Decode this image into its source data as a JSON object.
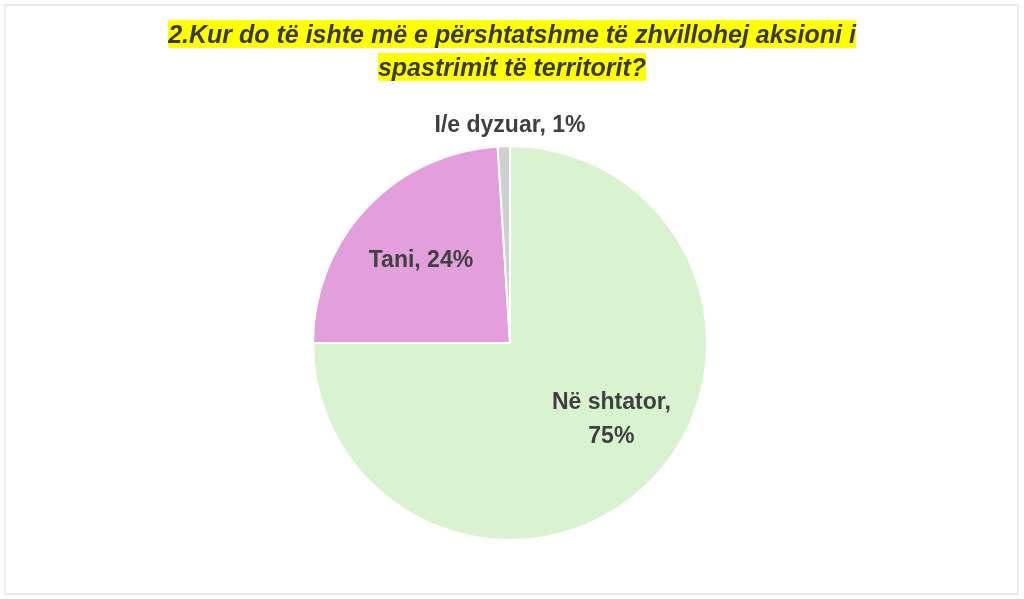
{
  "chart_data": {
    "type": "pie",
    "title": "2.Kur do të ishte më e përshtatshme të zhvillohej aksioni i spastrimit të territorit?",
    "categories": [
      "Në shtator",
      "Tani",
      "I/e dyzuar"
    ],
    "values": [
      75,
      24,
      1
    ],
    "colors": [
      "#d9f2d0",
      "#e29fdc",
      "#d0d0d0"
    ],
    "value_labels": [
      ", 75%",
      ", 24%",
      ", 1%"
    ]
  }
}
